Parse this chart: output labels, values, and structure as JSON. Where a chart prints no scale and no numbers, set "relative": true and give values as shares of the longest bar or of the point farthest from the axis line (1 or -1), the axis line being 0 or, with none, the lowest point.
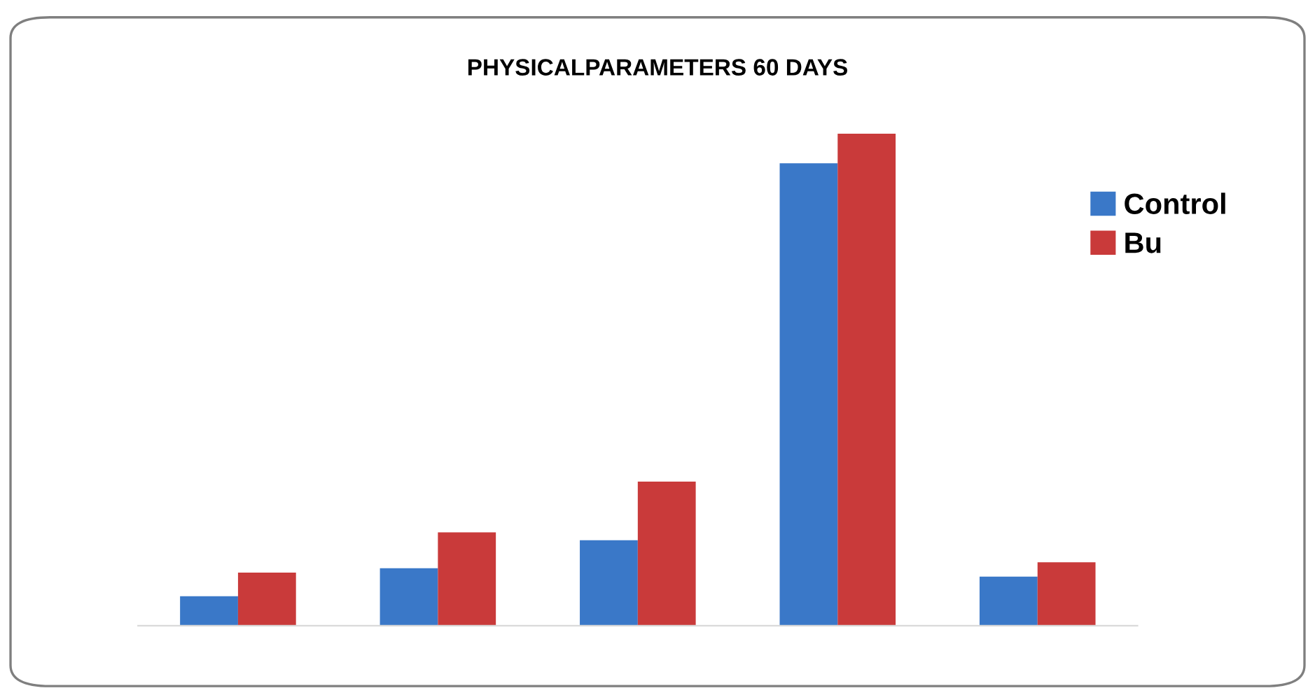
{
  "chart_data": {
    "type": "bar",
    "title": "PHYSICALPARAMETERS 60 DAYS",
    "relative": true,
    "categories": [
      null,
      null,
      null,
      null,
      null
    ],
    "series": [
      {
        "name": "Control",
        "color": "#3a78c8",
        "values": [
          0.06,
          0.117,
          0.174,
          0.94,
          0.1
        ]
      },
      {
        "name": "Bu",
        "color": "#c93a3a",
        "values": [
          0.108,
          0.19,
          0.293,
          1.0,
          0.129
        ]
      }
    ],
    "legend": "right",
    "grid": false
  }
}
